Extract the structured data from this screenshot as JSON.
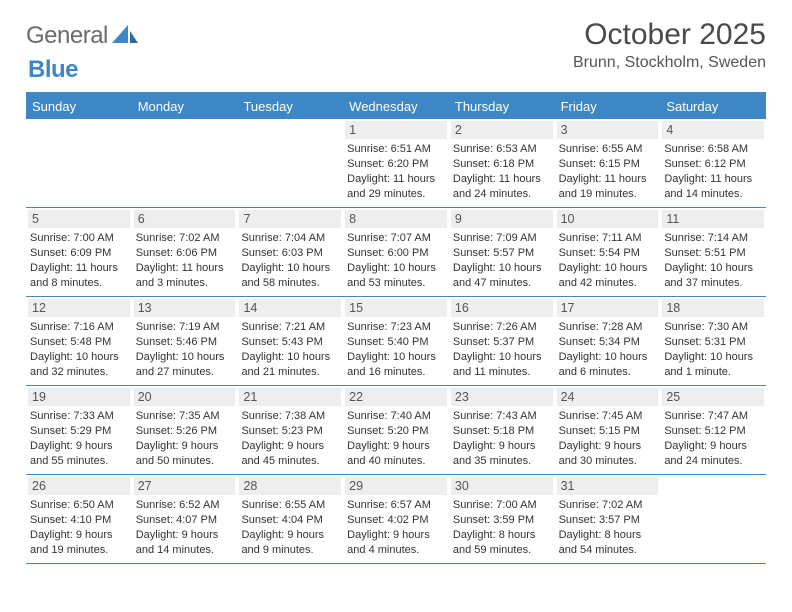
{
  "logo": {
    "part1": "General",
    "part2": "Blue"
  },
  "title": "October 2025",
  "location": "Brunn, Stockholm, Sweden",
  "colors": {
    "accent": "#3e87c6",
    "logo_gray": "#6b6b6b",
    "text": "#333333",
    "daynum_bg": "#eeeeee",
    "background": "#ffffff"
  },
  "dayHeaders": [
    "Sunday",
    "Monday",
    "Tuesday",
    "Wednesday",
    "Thursday",
    "Friday",
    "Saturday"
  ],
  "startDayOffset": 3,
  "days": [
    {
      "n": "1",
      "sunrise": "6:51 AM",
      "sunset": "6:20 PM",
      "daylight": "11 hours and 29 minutes."
    },
    {
      "n": "2",
      "sunrise": "6:53 AM",
      "sunset": "6:18 PM",
      "daylight": "11 hours and 24 minutes."
    },
    {
      "n": "3",
      "sunrise": "6:55 AM",
      "sunset": "6:15 PM",
      "daylight": "11 hours and 19 minutes."
    },
    {
      "n": "4",
      "sunrise": "6:58 AM",
      "sunset": "6:12 PM",
      "daylight": "11 hours and 14 minutes."
    },
    {
      "n": "5",
      "sunrise": "7:00 AM",
      "sunset": "6:09 PM",
      "daylight": "11 hours and 8 minutes."
    },
    {
      "n": "6",
      "sunrise": "7:02 AM",
      "sunset": "6:06 PM",
      "daylight": "11 hours and 3 minutes."
    },
    {
      "n": "7",
      "sunrise": "7:04 AM",
      "sunset": "6:03 PM",
      "daylight": "10 hours and 58 minutes."
    },
    {
      "n": "8",
      "sunrise": "7:07 AM",
      "sunset": "6:00 PM",
      "daylight": "10 hours and 53 minutes."
    },
    {
      "n": "9",
      "sunrise": "7:09 AM",
      "sunset": "5:57 PM",
      "daylight": "10 hours and 47 minutes."
    },
    {
      "n": "10",
      "sunrise": "7:11 AM",
      "sunset": "5:54 PM",
      "daylight": "10 hours and 42 minutes."
    },
    {
      "n": "11",
      "sunrise": "7:14 AM",
      "sunset": "5:51 PM",
      "daylight": "10 hours and 37 minutes."
    },
    {
      "n": "12",
      "sunrise": "7:16 AM",
      "sunset": "5:48 PM",
      "daylight": "10 hours and 32 minutes."
    },
    {
      "n": "13",
      "sunrise": "7:19 AM",
      "sunset": "5:46 PM",
      "daylight": "10 hours and 27 minutes."
    },
    {
      "n": "14",
      "sunrise": "7:21 AM",
      "sunset": "5:43 PM",
      "daylight": "10 hours and 21 minutes."
    },
    {
      "n": "15",
      "sunrise": "7:23 AM",
      "sunset": "5:40 PM",
      "daylight": "10 hours and 16 minutes."
    },
    {
      "n": "16",
      "sunrise": "7:26 AM",
      "sunset": "5:37 PM",
      "daylight": "10 hours and 11 minutes."
    },
    {
      "n": "17",
      "sunrise": "7:28 AM",
      "sunset": "5:34 PM",
      "daylight": "10 hours and 6 minutes."
    },
    {
      "n": "18",
      "sunrise": "7:30 AM",
      "sunset": "5:31 PM",
      "daylight": "10 hours and 1 minute."
    },
    {
      "n": "19",
      "sunrise": "7:33 AM",
      "sunset": "5:29 PM",
      "daylight": "9 hours and 55 minutes."
    },
    {
      "n": "20",
      "sunrise": "7:35 AM",
      "sunset": "5:26 PM",
      "daylight": "9 hours and 50 minutes."
    },
    {
      "n": "21",
      "sunrise": "7:38 AM",
      "sunset": "5:23 PM",
      "daylight": "9 hours and 45 minutes."
    },
    {
      "n": "22",
      "sunrise": "7:40 AM",
      "sunset": "5:20 PM",
      "daylight": "9 hours and 40 minutes."
    },
    {
      "n": "23",
      "sunrise": "7:43 AM",
      "sunset": "5:18 PM",
      "daylight": "9 hours and 35 minutes."
    },
    {
      "n": "24",
      "sunrise": "7:45 AM",
      "sunset": "5:15 PM",
      "daylight": "9 hours and 30 minutes."
    },
    {
      "n": "25",
      "sunrise": "7:47 AM",
      "sunset": "5:12 PM",
      "daylight": "9 hours and 24 minutes."
    },
    {
      "n": "26",
      "sunrise": "6:50 AM",
      "sunset": "4:10 PM",
      "daylight": "9 hours and 19 minutes."
    },
    {
      "n": "27",
      "sunrise": "6:52 AM",
      "sunset": "4:07 PM",
      "daylight": "9 hours and 14 minutes."
    },
    {
      "n": "28",
      "sunrise": "6:55 AM",
      "sunset": "4:04 PM",
      "daylight": "9 hours and 9 minutes."
    },
    {
      "n": "29",
      "sunrise": "6:57 AM",
      "sunset": "4:02 PM",
      "daylight": "9 hours and 4 minutes."
    },
    {
      "n": "30",
      "sunrise": "7:00 AM",
      "sunset": "3:59 PM",
      "daylight": "8 hours and 59 minutes."
    },
    {
      "n": "31",
      "sunrise": "7:02 AM",
      "sunset": "3:57 PM",
      "daylight": "8 hours and 54 minutes."
    }
  ],
  "labels": {
    "sunrise": "Sunrise:",
    "sunset": "Sunset:",
    "daylight": "Daylight:"
  }
}
